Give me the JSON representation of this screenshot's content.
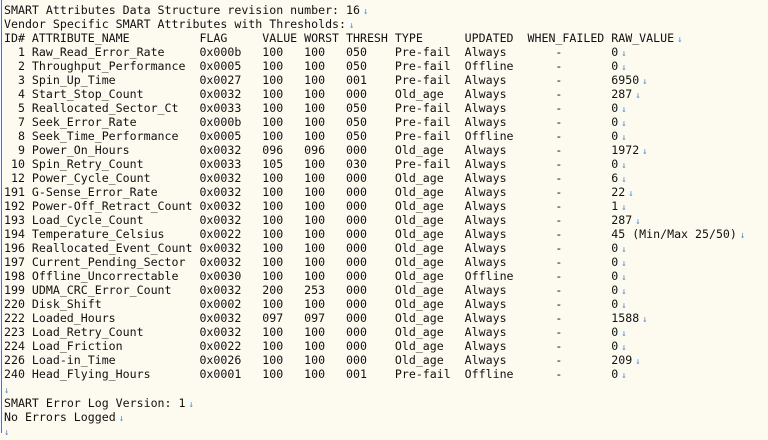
{
  "header": {
    "revision_line": "SMART Attributes Data Structure revision number: 16",
    "vendor_line": "Vendor Specific SMART Attributes with Thresholds:"
  },
  "columns": {
    "id": "ID#",
    "name": "ATTRIBUTE_NAME",
    "flag": "FLAG",
    "value": "VALUE",
    "worst": "WORST",
    "thresh": "THRESH",
    "type": "TYPE",
    "updated": "UPDATED",
    "when_failed": "WHEN_FAILED",
    "raw": "RAW_VALUE"
  },
  "rows": [
    {
      "id": "1",
      "name": "Raw_Read_Error_Rate",
      "flag": "0x000b",
      "value": "100",
      "worst": "100",
      "thresh": "050",
      "type": "Pre-fail",
      "updated": "Always",
      "when_failed": "-",
      "raw": "0"
    },
    {
      "id": "2",
      "name": "Throughput_Performance",
      "flag": "0x0005",
      "value": "100",
      "worst": "100",
      "thresh": "050",
      "type": "Pre-fail",
      "updated": "Offline",
      "when_failed": "-",
      "raw": "0"
    },
    {
      "id": "3",
      "name": "Spin_Up_Time",
      "flag": "0x0027",
      "value": "100",
      "worst": "100",
      "thresh": "001",
      "type": "Pre-fail",
      "updated": "Always",
      "when_failed": "-",
      "raw": "6950"
    },
    {
      "id": "4",
      "name": "Start_Stop_Count",
      "flag": "0x0032",
      "value": "100",
      "worst": "100",
      "thresh": "000",
      "type": "Old_age",
      "updated": "Always",
      "when_failed": "-",
      "raw": "287"
    },
    {
      "id": "5",
      "name": "Reallocated_Sector_Ct",
      "flag": "0x0033",
      "value": "100",
      "worst": "100",
      "thresh": "050",
      "type": "Pre-fail",
      "updated": "Always",
      "when_failed": "-",
      "raw": "0"
    },
    {
      "id": "7",
      "name": "Seek_Error_Rate",
      "flag": "0x000b",
      "value": "100",
      "worst": "100",
      "thresh": "050",
      "type": "Pre-fail",
      "updated": "Always",
      "when_failed": "-",
      "raw": "0"
    },
    {
      "id": "8",
      "name": "Seek_Time_Performance",
      "flag": "0x0005",
      "value": "100",
      "worst": "100",
      "thresh": "050",
      "type": "Pre-fail",
      "updated": "Offline",
      "when_failed": "-",
      "raw": "0"
    },
    {
      "id": "9",
      "name": "Power_On_Hours",
      "flag": "0x0032",
      "value": "096",
      "worst": "096",
      "thresh": "000",
      "type": "Old_age",
      "updated": "Always",
      "when_failed": "-",
      "raw": "1972"
    },
    {
      "id": "10",
      "name": "Spin_Retry_Count",
      "flag": "0x0033",
      "value": "105",
      "worst": "100",
      "thresh": "030",
      "type": "Pre-fail",
      "updated": "Always",
      "when_failed": "-",
      "raw": "0"
    },
    {
      "id": "12",
      "name": "Power_Cycle_Count",
      "flag": "0x0032",
      "value": "100",
      "worst": "100",
      "thresh": "000",
      "type": "Old_age",
      "updated": "Always",
      "when_failed": "-",
      "raw": "6"
    },
    {
      "id": "191",
      "name": "G-Sense_Error_Rate",
      "flag": "0x0032",
      "value": "100",
      "worst": "100",
      "thresh": "000",
      "type": "Old_age",
      "updated": "Always",
      "when_failed": "-",
      "raw": "22"
    },
    {
      "id": "192",
      "name": "Power-Off_Retract_Count",
      "flag": "0x0032",
      "value": "100",
      "worst": "100",
      "thresh": "000",
      "type": "Old_age",
      "updated": "Always",
      "when_failed": "-",
      "raw": "1"
    },
    {
      "id": "193",
      "name": "Load_Cycle_Count",
      "flag": "0x0032",
      "value": "100",
      "worst": "100",
      "thresh": "000",
      "type": "Old_age",
      "updated": "Always",
      "when_failed": "-",
      "raw": "287"
    },
    {
      "id": "194",
      "name": "Temperature_Celsius",
      "flag": "0x0022",
      "value": "100",
      "worst": "100",
      "thresh": "000",
      "type": "Old_age",
      "updated": "Always",
      "when_failed": "-",
      "raw": "45 (Min/Max 25/50)"
    },
    {
      "id": "196",
      "name": "Reallocated_Event_Count",
      "flag": "0x0032",
      "value": "100",
      "worst": "100",
      "thresh": "000",
      "type": "Old_age",
      "updated": "Always",
      "when_failed": "-",
      "raw": "0"
    },
    {
      "id": "197",
      "name": "Current_Pending_Sector",
      "flag": "0x0032",
      "value": "100",
      "worst": "100",
      "thresh": "000",
      "type": "Old_age",
      "updated": "Always",
      "when_failed": "-",
      "raw": "0"
    },
    {
      "id": "198",
      "name": "Offline_Uncorrectable",
      "flag": "0x0030",
      "value": "100",
      "worst": "100",
      "thresh": "000",
      "type": "Old_age",
      "updated": "Offline",
      "when_failed": "-",
      "raw": "0"
    },
    {
      "id": "199",
      "name": "UDMA_CRC_Error_Count",
      "flag": "0x0032",
      "value": "200",
      "worst": "253",
      "thresh": "000",
      "type": "Old_age",
      "updated": "Always",
      "when_failed": "-",
      "raw": "0"
    },
    {
      "id": "220",
      "name": "Disk_Shift",
      "flag": "0x0002",
      "value": "100",
      "worst": "100",
      "thresh": "000",
      "type": "Old_age",
      "updated": "Always",
      "when_failed": "-",
      "raw": "0"
    },
    {
      "id": "222",
      "name": "Loaded_Hours",
      "flag": "0x0032",
      "value": "097",
      "worst": "097",
      "thresh": "000",
      "type": "Old_age",
      "updated": "Always",
      "when_failed": "-",
      "raw": "1588"
    },
    {
      "id": "223",
      "name": "Load_Retry_Count",
      "flag": "0x0032",
      "value": "100",
      "worst": "100",
      "thresh": "000",
      "type": "Old_age",
      "updated": "Always",
      "when_failed": "-",
      "raw": "0"
    },
    {
      "id": "224",
      "name": "Load_Friction",
      "flag": "0x0022",
      "value": "100",
      "worst": "100",
      "thresh": "000",
      "type": "Old_age",
      "updated": "Always",
      "when_failed": "-",
      "raw": "0"
    },
    {
      "id": "226",
      "name": "Load-in_Time",
      "flag": "0x0026",
      "value": "100",
      "worst": "100",
      "thresh": "000",
      "type": "Old_age",
      "updated": "Always",
      "when_failed": "-",
      "raw": "209"
    },
    {
      "id": "240",
      "name": "Head_Flying_Hours",
      "flag": "0x0001",
      "value": "100",
      "worst": "100",
      "thresh": "001",
      "type": "Pre-fail",
      "updated": "Offline",
      "when_failed": "-",
      "raw": "0"
    }
  ],
  "footer": {
    "error_log_line": "SMART Error Log Version: 1",
    "no_errors_line": "No Errors Logged"
  },
  "eol_marker": "↓",
  "colors": {
    "background": "#fdfaf0",
    "eol_marker": "#4a8fd8",
    "margin_line": "#5a6db5"
  }
}
